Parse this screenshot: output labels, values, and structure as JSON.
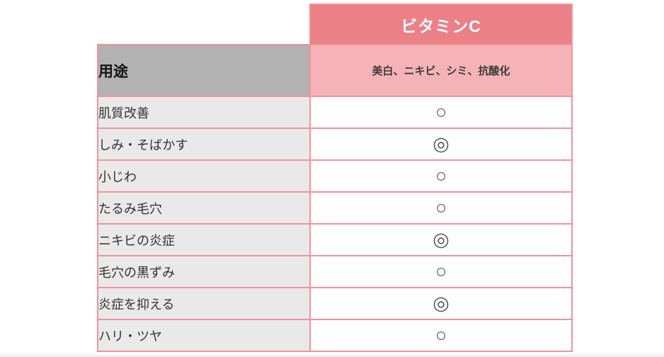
{
  "table": {
    "column_header": "ビタミンC",
    "usage_header": "用途",
    "subheader": "美白、ニキビ、シミ、抗酸化",
    "rows": [
      {
        "label": "肌質改善",
        "mark": "○"
      },
      {
        "label": "しみ・そばかす",
        "mark": "◎"
      },
      {
        "label": "小じわ",
        "mark": "○"
      },
      {
        "label": "たるみ毛穴",
        "mark": "○"
      },
      {
        "label": "ニキビの炎症",
        "mark": "◎"
      },
      {
        "label": "毛穴の黒ずみ",
        "mark": "○"
      },
      {
        "label": "炎症を抑える",
        "mark": "◎"
      },
      {
        "label": "ハリ・ツヤ",
        "mark": "○"
      }
    ]
  },
  "colors": {
    "banner_bg": "#EB8087",
    "banner_text": "#FFFFFF",
    "subheader_bg": "#F5B3B8",
    "cell_border": "#F09498",
    "usage_header_bg": "#B2B2B2",
    "row_label_bg": "#E9E9E9",
    "mark_cell_bg": "#FFFFFF",
    "label_text": "#333333",
    "mark_text": "#555555"
  },
  "chart_data": {
    "type": "table",
    "title": "ビタミンC",
    "subtitle": "美白、ニキビ、シミ、抗酸化",
    "columns": [
      "用途",
      "ビタミンC"
    ],
    "rows": [
      [
        "肌質改善",
        "○"
      ],
      [
        "しみ・そばかす",
        "◎"
      ],
      [
        "小じわ",
        "○"
      ],
      [
        "たるみ毛穴",
        "○"
      ],
      [
        "ニキビの炎症",
        "◎"
      ],
      [
        "毛穴の黒ずみ",
        "○"
      ],
      [
        "炎症を抑える",
        "◎"
      ],
      [
        "ハリ・ツヤ",
        "○"
      ]
    ]
  }
}
